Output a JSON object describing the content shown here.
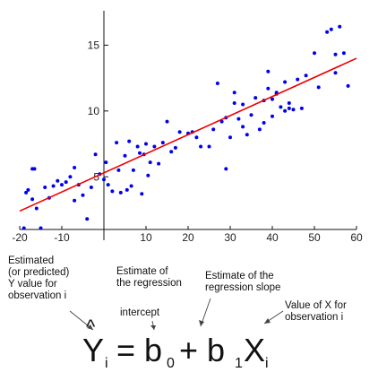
{
  "colors": {
    "points": "#0000ee",
    "line": "#ee0000",
    "axis": "#111111",
    "text": "#111111"
  },
  "chart_data": {
    "type": "scatter",
    "title": "",
    "xlabel": "",
    "ylabel": "",
    "xlim": [
      -20,
      60
    ],
    "ylim": [
      1,
      17
    ],
    "grid": false,
    "x_ticks": [
      -20,
      -10,
      0,
      10,
      20,
      30,
      40,
      50,
      60
    ],
    "x_tick_labels": [
      "-20",
      "-10",
      "",
      "10",
      "20",
      "30",
      "40",
      "50",
      "60"
    ],
    "y_ticks": [
      5,
      10,
      15
    ],
    "y_tick_labels": [
      "5",
      "10",
      "15"
    ],
    "series": [
      {
        "type": "scatter",
        "points": [
          [
            -19,
            1.1
          ],
          [
            -18.5,
            3.8
          ],
          [
            -18,
            4.0
          ],
          [
            -17,
            5.6
          ],
          [
            -16.5,
            5.6
          ],
          [
            -17,
            3.3
          ],
          [
            -16,
            2.6
          ],
          [
            -15,
            1.1
          ],
          [
            -14,
            4.2
          ],
          [
            -13,
            3.4
          ],
          [
            -12,
            4.3
          ],
          [
            -11,
            4.7
          ],
          [
            -10,
            4.4
          ],
          [
            -9,
            4.6
          ],
          [
            -8,
            5.0
          ],
          [
            -7,
            5.7
          ],
          [
            -7,
            3.2
          ],
          [
            -6,
            4.4
          ],
          [
            -5,
            3.6
          ],
          [
            -4,
            1.8
          ],
          [
            -3,
            4.2
          ],
          [
            -2,
            6.7
          ],
          [
            -1,
            5.2
          ],
          [
            0,
            4.8
          ],
          [
            0.5,
            6.1
          ],
          [
            1,
            4.4
          ],
          [
            2,
            3.9
          ],
          [
            3,
            7.6
          ],
          [
            3.5,
            5.5
          ],
          [
            4,
            3.8
          ],
          [
            5,
            6.6
          ],
          [
            5.5,
            4.0
          ],
          [
            6,
            7.7
          ],
          [
            6.5,
            4.3
          ],
          [
            7,
            5.5
          ],
          [
            8,
            7.3
          ],
          [
            8.5,
            6.8
          ],
          [
            9,
            3.7
          ],
          [
            9.5,
            6.7
          ],
          [
            10,
            7.5
          ],
          [
            10.5,
            5.1
          ],
          [
            11,
            6.1
          ],
          [
            12,
            7.3
          ],
          [
            13,
            6.0
          ],
          [
            14,
            7.6
          ],
          [
            15,
            9.2
          ],
          [
            16,
            6.9
          ],
          [
            17,
            7.2
          ],
          [
            18,
            8.4
          ],
          [
            20,
            8.3
          ],
          [
            21,
            8.4
          ],
          [
            22,
            8.0
          ],
          [
            23,
            7.3
          ],
          [
            25,
            7.3
          ],
          [
            26,
            8.6
          ],
          [
            27,
            12.1
          ],
          [
            28,
            9.2
          ],
          [
            29,
            5.6
          ],
          [
            29,
            9.5
          ],
          [
            30,
            8.0
          ],
          [
            31,
            11.4
          ],
          [
            31,
            10.6
          ],
          [
            32,
            9.4
          ],
          [
            33,
            8.8
          ],
          [
            33,
            10.5
          ],
          [
            34,
            8.2
          ],
          [
            35,
            9.7
          ],
          [
            36,
            11.0
          ],
          [
            37,
            8.6
          ],
          [
            38,
            9.1
          ],
          [
            38,
            10.8
          ],
          [
            39,
            11.7
          ],
          [
            39,
            13.0
          ],
          [
            40,
            10.9
          ],
          [
            40,
            9.6
          ],
          [
            41,
            11.3
          ],
          [
            41,
            11.4
          ],
          [
            42,
            10.3
          ],
          [
            43,
            10.0
          ],
          [
            43,
            12.2
          ],
          [
            44,
            10.6
          ],
          [
            44,
            10.2
          ],
          [
            45,
            10.1
          ],
          [
            46,
            12.4
          ],
          [
            47,
            10.2
          ],
          [
            48,
            12.7
          ],
          [
            50,
            14.4
          ],
          [
            51,
            11.8
          ],
          [
            53,
            16.0
          ],
          [
            54,
            16.2
          ],
          [
            55,
            14.3
          ],
          [
            55,
            12.9
          ],
          [
            56,
            16.4
          ],
          [
            57,
            14.4
          ],
          [
            58,
            11.9
          ]
        ]
      },
      {
        "type": "line",
        "points": [
          [
            -20,
            2.4
          ],
          [
            60,
            14.0
          ]
        ]
      }
    ]
  },
  "annotations": {
    "estimated": "Estimated\n(or predicted)\nY value for\nobservation i",
    "regression": "Estimate of\nthe regression",
    "intercept": "intercept",
    "slope": "Estimate of the\nregression slope",
    "value_x": "Value of X for\nobservation i"
  },
  "formula": {
    "yhat": "Y",
    "hat": "^",
    "sub_i1": "i",
    "eq_b": "= b",
    "sub_0": "0",
    "plus_b": "+ b",
    "sub_1": "1",
    "x": "X",
    "sub_i2": "i"
  }
}
